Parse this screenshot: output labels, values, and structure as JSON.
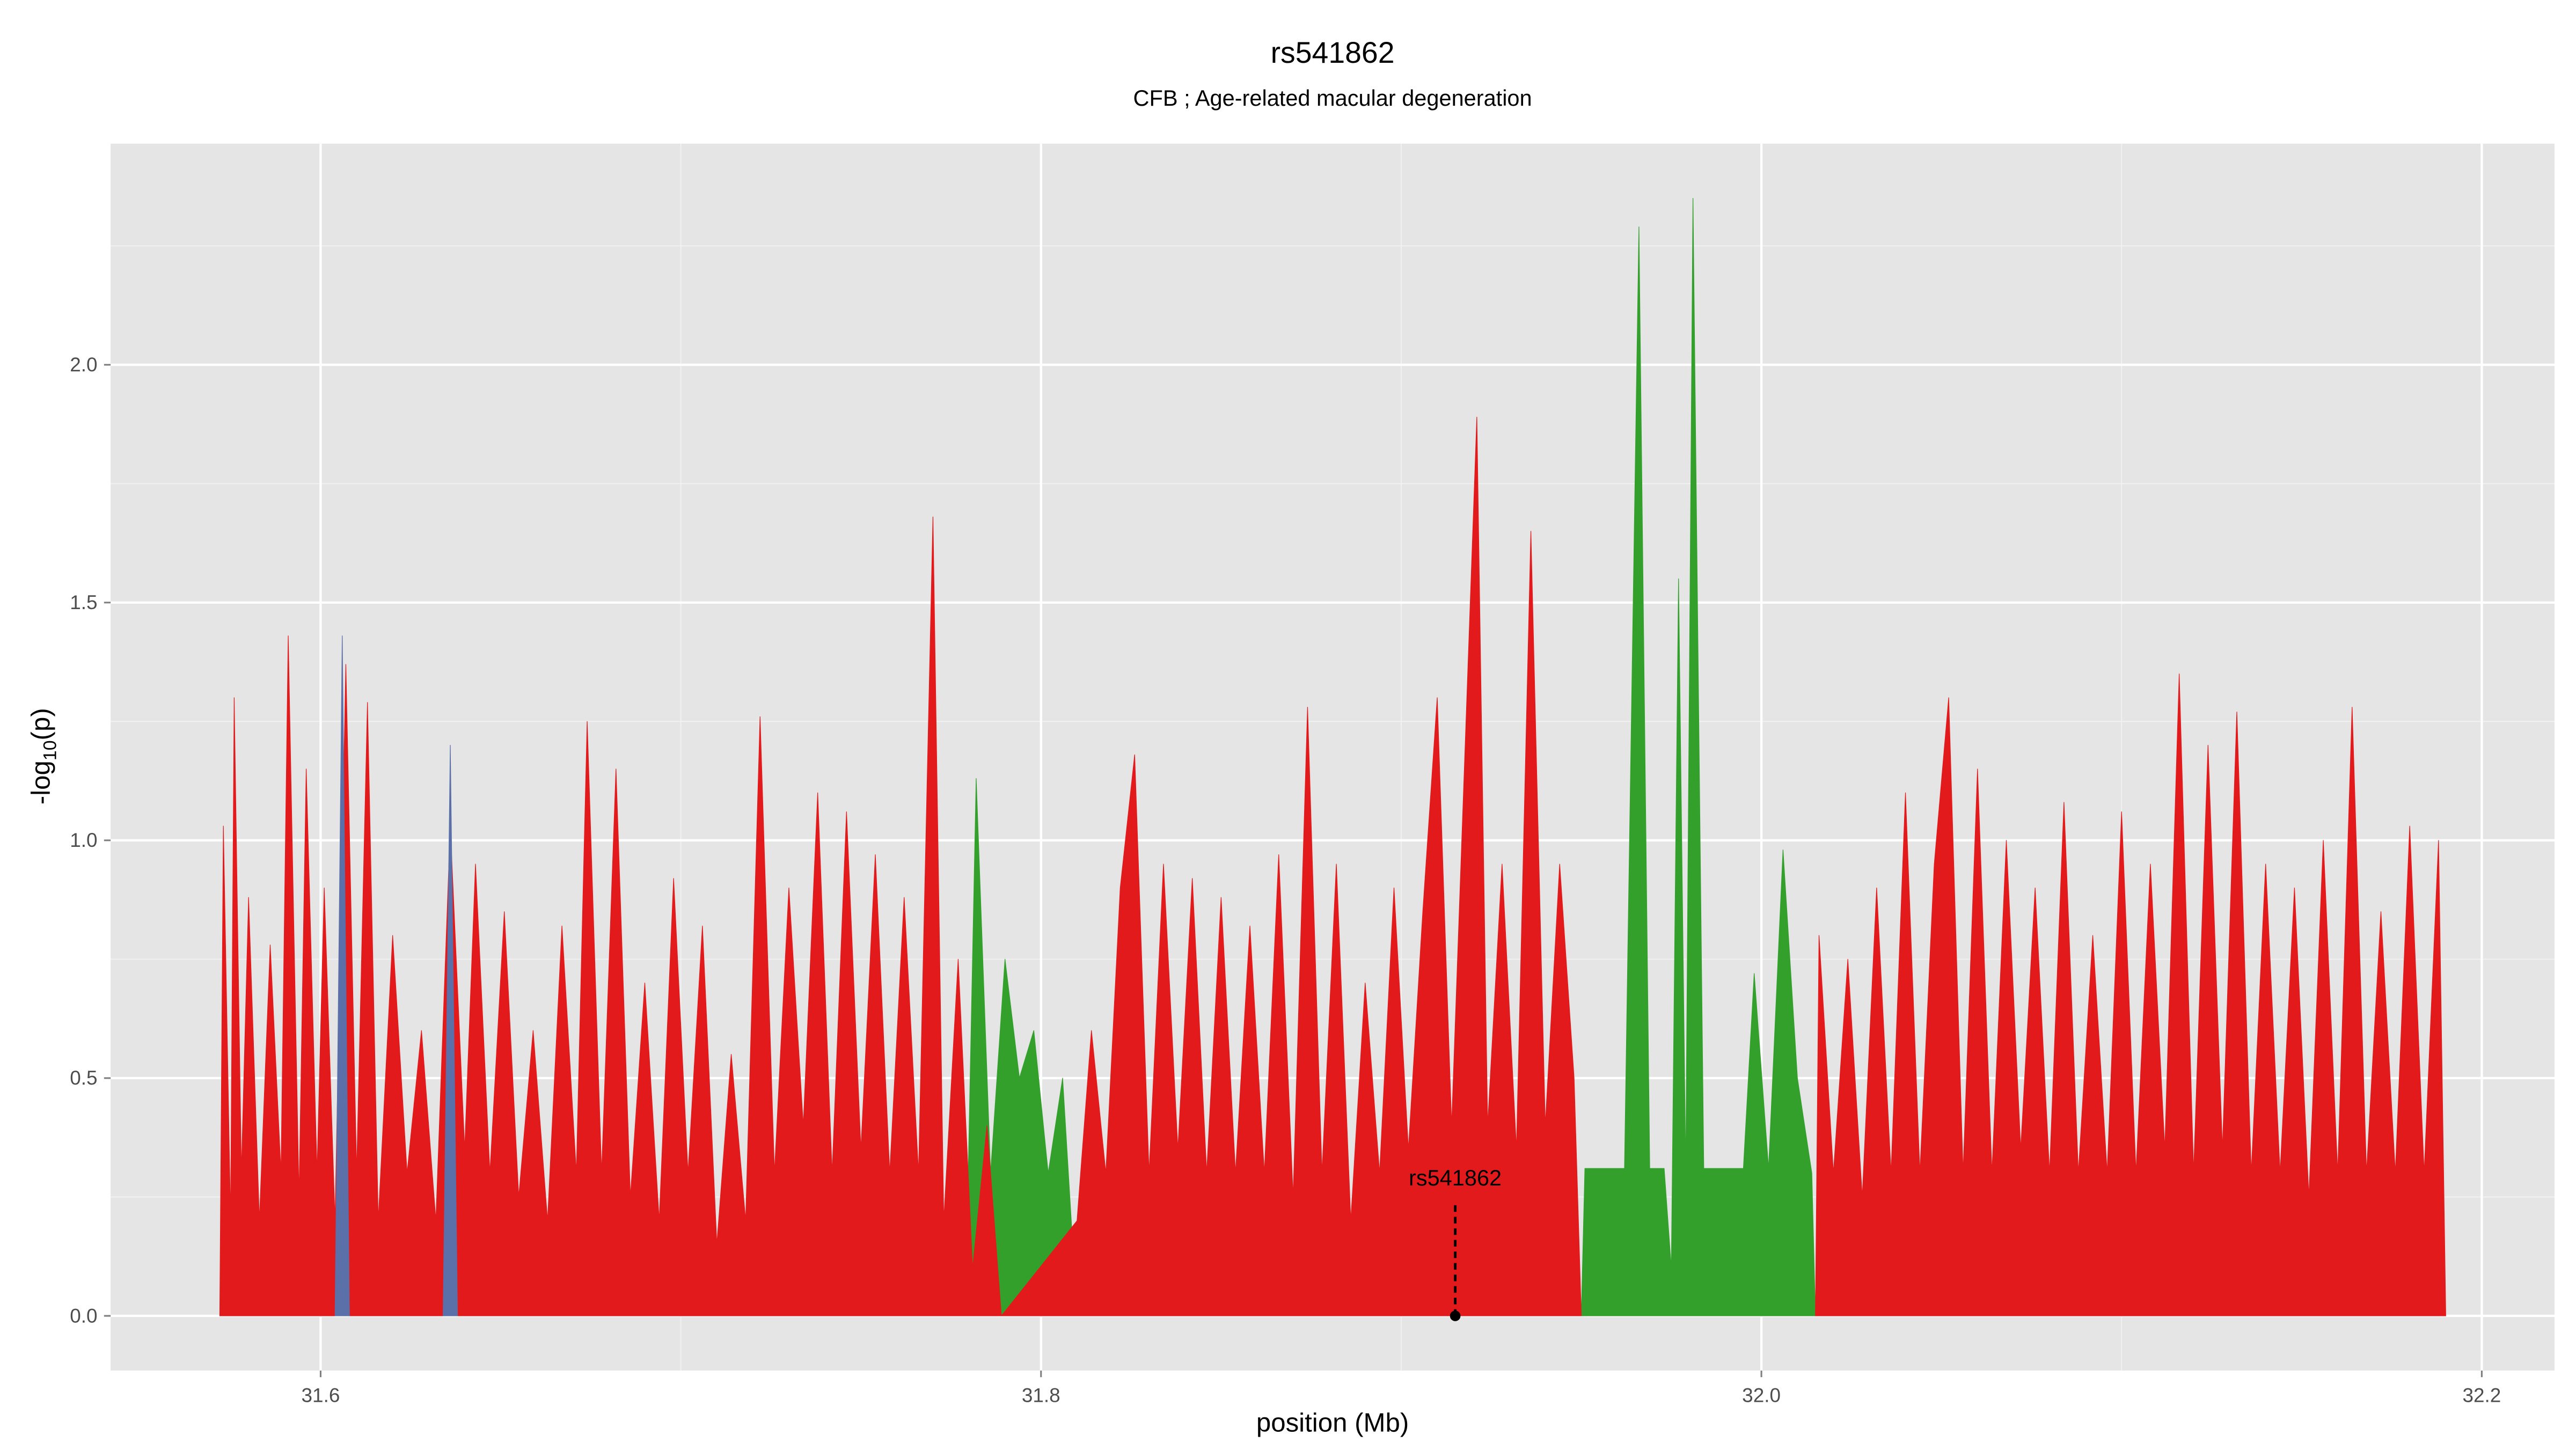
{
  "chart_data": {
    "type": "area",
    "title": "rs541862",
    "subtitle": "CFB ; Age-related macular degeneration",
    "xlabel": "position (Mb)",
    "ylabel": [
      "-log",
      "10",
      "(p)"
    ],
    "xlim": [
      31.5417,
      32.2202
    ],
    "ylim": [
      -0.115,
      2.465
    ],
    "xticks": [
      31.6,
      31.8,
      {
        "value": 32,
        "label": "32.0"
      },
      32.2
    ],
    "yticks": [
      {
        "value": 0,
        "label": "0.0"
      },
      0.5,
      {
        "value": 1,
        "label": "1.0"
      },
      1.5,
      {
        "value": 2,
        "label": "2.0"
      }
    ],
    "xticks_minor": [
      31.7,
      31.9,
      32.1
    ],
    "yticks_minor": [
      0.25,
      0.75,
      1.25,
      1.75,
      2.25
    ],
    "grid": true,
    "series": [
      {
        "color": "#33a02c",
        "x": [
          31.779,
          31.782,
          31.786,
          31.79,
          31.794,
          31.798,
          31.802,
          31.806,
          31.81,
          31.88,
          31.95,
          31.951,
          31.962,
          31.966,
          31.969,
          31.973,
          31.975,
          31.977,
          31.979,
          31.981,
          31.984,
          31.995,
          31.998,
          32.002,
          32.006,
          32.01,
          32.014,
          32.015
        ],
        "values": [
          0,
          1.13,
          0.3,
          0.75,
          0.5,
          0.6,
          0.3,
          0.5,
          0,
          null,
          0,
          0.31,
          0.31,
          2.29,
          0.31,
          0.31,
          0.1,
          1.55,
          0.3,
          2.35,
          0.31,
          0.31,
          0.72,
          0.31,
          0.98,
          0.5,
          0.3,
          0
        ]
      },
      {
        "color": "#e31a1c",
        "x": [
          31.572,
          31.573,
          31.575,
          31.576,
          31.578,
          31.58,
          31.583,
          31.586,
          31.589,
          31.591,
          31.594,
          31.596,
          31.599,
          31.601,
          31.604,
          31.607,
          31.61,
          31.613,
          31.616,
          31.62,
          31.624,
          31.628,
          31.632,
          31.636,
          31.64,
          31.643,
          31.647,
          31.651,
          31.655,
          31.659,
          31.663,
          31.667,
          31.671,
          31.674,
          31.678,
          31.682,
          31.686,
          31.69,
          31.694,
          31.698,
          31.702,
          31.706,
          31.71,
          31.714,
          31.718,
          31.722,
          31.726,
          31.73,
          31.734,
          31.738,
          31.742,
          31.746,
          31.75,
          31.754,
          31.758,
          31.762,
          31.766,
          31.77,
          31.773,
          31.777,
          31.781,
          31.785,
          31.789,
          31.81,
          31.814,
          31.818,
          31.822,
          31.826,
          31.83,
          31.834,
          31.838,
          31.842,
          31.846,
          31.85,
          31.854,
          31.858,
          31.862,
          31.866,
          31.87,
          31.874,
          31.878,
          31.882,
          31.886,
          31.89,
          31.894,
          31.898,
          31.902,
          31.906,
          31.91,
          31.914,
          31.918,
          31.921,
          31.924,
          31.928,
          31.932,
          31.936,
          31.94,
          31.944,
          31.948,
          31.95
        ],
        "values": [
          0,
          1.03,
          0.2,
          1.3,
          0.3,
          0.88,
          0.2,
          0.78,
          0.3,
          1.43,
          0.25,
          1.15,
          0.3,
          0.9,
          0.2,
          1.37,
          0.3,
          1.29,
          0.2,
          0.8,
          0.3,
          0.6,
          0.2,
          1.03,
          0.35,
          0.95,
          0.3,
          0.85,
          0.25,
          0.6,
          0.2,
          0.82,
          0.3,
          1.25,
          0.3,
          1.15,
          0.25,
          0.7,
          0.2,
          0.92,
          0.3,
          0.82,
          0.15,
          0.55,
          0.2,
          1.26,
          0.3,
          0.9,
          0.4,
          1.1,
          0.3,
          1.06,
          0.35,
          0.97,
          0.3,
          0.88,
          0.3,
          1.68,
          0.2,
          0.75,
          0.1,
          0.4,
          0,
          0.2,
          0.6,
          0.3,
          0.9,
          1.18,
          0.3,
          0.95,
          0.35,
          0.92,
          0.3,
          0.88,
          0.3,
          0.82,
          0.3,
          0.97,
          0.25,
          1.28,
          0.3,
          0.95,
          0.2,
          0.7,
          0.3,
          0.9,
          0.35,
          0.85,
          1.3,
          0.4,
          1.25,
          1.89,
          0.4,
          0.95,
          0.35,
          1.65,
          0.4,
          0.95,
          0.5,
          0
        ]
      },
      {
        "color": "#e31a1c",
        "x": [
          32.015,
          32.016,
          32.02,
          32.024,
          32.028,
          32.032,
          32.036,
          32.04,
          32.044,
          32.048,
          32.052,
          32.056,
          32.06,
          32.064,
          32.068,
          32.072,
          32.076,
          32.08,
          32.084,
          32.088,
          32.092,
          32.096,
          32.1,
          32.104,
          32.108,
          32.112,
          32.116,
          32.12,
          32.124,
          32.128,
          32.132,
          32.136,
          32.14,
          32.144,
          32.148,
          32.152,
          32.156,
          32.16,
          32.164,
          32.168,
          32.172,
          32.176,
          32.18,
          32.184,
          32.188,
          32.19
        ],
        "values": [
          0,
          0.8,
          0.3,
          0.75,
          0.25,
          0.9,
          0.3,
          1.1,
          0.3,
          0.95,
          1.3,
          0.3,
          1.15,
          0.3,
          1.0,
          0.35,
          0.9,
          0.3,
          1.08,
          0.3,
          0.8,
          0.3,
          1.06,
          0.3,
          0.95,
          0.35,
          1.35,
          0.3,
          1.2,
          0.35,
          1.27,
          0.3,
          0.95,
          0.3,
          0.9,
          0.25,
          1.0,
          0.3,
          1.28,
          0.3,
          0.85,
          0.3,
          1.03,
          0.3,
          1.0,
          0
        ]
      },
      {
        "color": "#5b6fa8",
        "x": [
          31.604,
          31.606,
          31.608,
          31.62,
          31.634,
          31.636,
          31.638
        ],
        "values": [
          0,
          1.43,
          0,
          null,
          0,
          1.2,
          0
        ]
      }
    ],
    "annotation": {
      "text": "rs541862",
      "x": 31.915,
      "y": 0
    }
  }
}
